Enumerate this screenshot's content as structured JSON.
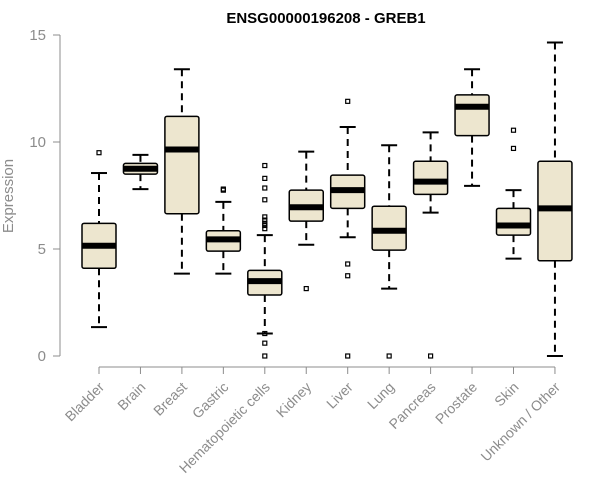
{
  "chart_data": {
    "type": "box",
    "title": "ENSG00000196208 - GREB1",
    "ylabel": "Expression",
    "xlabel": "",
    "ylim": [
      0,
      15
    ],
    "yticks": [
      0,
      5,
      10,
      15
    ],
    "grid": false,
    "colors": {
      "box_fill": "#ede6cf",
      "outline": "#000000",
      "axis": "#8c8c8c",
      "title": "#000000"
    },
    "categories": [
      "Bladder",
      "Brain",
      "Breast",
      "Gastric",
      "Hematopoietic cells",
      "Kidney",
      "Liver",
      "Lung",
      "Pancreas",
      "Prostate",
      "Skin",
      "Unknown / Other"
    ],
    "boxes": [
      {
        "category": "Bladder",
        "whisker_low": 1.35,
        "q1": 4.1,
        "median": 5.15,
        "q3": 6.2,
        "whisker_high": 8.55,
        "outliers": [
          9.5
        ]
      },
      {
        "category": "Brain",
        "whisker_low": 7.8,
        "q1": 8.5,
        "median": 8.75,
        "q3": 9.0,
        "whisker_high": 9.4,
        "outliers": []
      },
      {
        "category": "Breast",
        "whisker_low": 3.85,
        "q1": 6.65,
        "median": 9.65,
        "q3": 11.2,
        "whisker_high": 13.4,
        "outliers": []
      },
      {
        "category": "Gastric",
        "whisker_low": 3.85,
        "q1": 4.9,
        "median": 5.45,
        "q3": 5.85,
        "whisker_high": 7.2,
        "outliers": [
          7.75,
          7.8
        ]
      },
      {
        "category": "Hematopoietic cells",
        "whisker_low": 1.05,
        "q1": 2.85,
        "median": 3.5,
        "q3": 4.0,
        "whisker_high": 5.65,
        "outliers": [
          0.0,
          0.6,
          1.05,
          5.95,
          6.1,
          6.2,
          6.35,
          6.5,
          7.3,
          7.85,
          8.3,
          8.9
        ]
      },
      {
        "category": "Kidney",
        "whisker_low": 5.2,
        "q1": 6.3,
        "median": 6.95,
        "q3": 7.75,
        "whisker_high": 9.55,
        "outliers": [
          3.15
        ]
      },
      {
        "category": "Liver",
        "whisker_low": 5.55,
        "q1": 6.9,
        "median": 7.75,
        "q3": 8.45,
        "whisker_high": 10.7,
        "outliers": [
          0.0,
          3.75,
          4.3,
          11.9
        ]
      },
      {
        "category": "Lung",
        "whisker_low": 3.15,
        "q1": 4.95,
        "median": 5.85,
        "q3": 7.0,
        "whisker_high": 9.85,
        "outliers": [
          0.0
        ]
      },
      {
        "category": "Pancreas",
        "whisker_low": 6.7,
        "q1": 7.55,
        "median": 8.15,
        "q3": 9.1,
        "whisker_high": 10.45,
        "outliers": [
          0.0
        ]
      },
      {
        "category": "Prostate",
        "whisker_low": 7.95,
        "q1": 10.3,
        "median": 11.65,
        "q3": 12.2,
        "whisker_high": 13.4,
        "outliers": []
      },
      {
        "category": "Skin",
        "whisker_low": 4.55,
        "q1": 5.65,
        "median": 6.1,
        "q3": 6.9,
        "whisker_high": 7.75,
        "outliers": [
          9.7,
          10.55
        ]
      },
      {
        "category": "Unknown / Other",
        "whisker_low": 0.0,
        "q1": 4.45,
        "median": 6.9,
        "q3": 9.1,
        "whisker_high": 14.65,
        "outliers": []
      }
    ]
  }
}
